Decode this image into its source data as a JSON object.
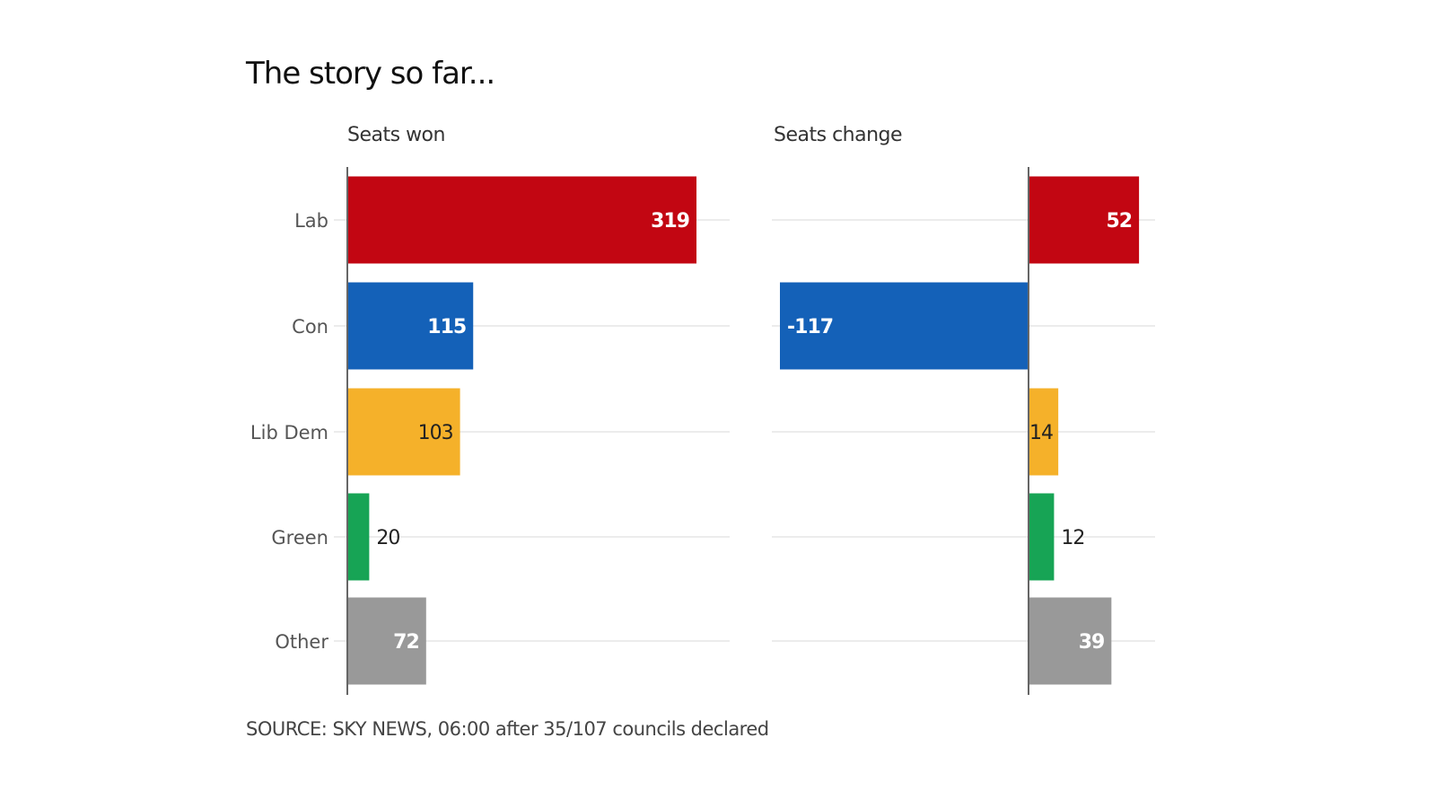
{
  "title": "The story so far...",
  "source": "SOURCE: SKY NEWS, 06:00 after 35/107 councils declared",
  "chart_data": [
    {
      "type": "bar",
      "orientation": "horizontal",
      "title": "Seats won",
      "categories": [
        "Lab",
        "Con",
        "Lib Dem",
        "Green",
        "Other"
      ],
      "values": [
        319,
        115,
        103,
        20,
        72
      ],
      "colors": [
        "#c20612",
        "#1461b8",
        "#f5b12a",
        "#17a455",
        "#999999"
      ],
      "label_colors": [
        "#ffffff",
        "#ffffff",
        "#222222",
        "#222222",
        "#ffffff"
      ],
      "xlim": [
        0,
        350
      ],
      "grid": true
    },
    {
      "type": "bar",
      "orientation": "horizontal",
      "title": "Seats change",
      "categories": [
        "Lab",
        "Con",
        "Lib Dem",
        "Green",
        "Other"
      ],
      "values": [
        52,
        -117,
        14,
        12,
        39
      ],
      "colors": [
        "#c20612",
        "#1461b8",
        "#f5b12a",
        "#17a455",
        "#999999"
      ],
      "label_colors": [
        "#ffffff",
        "#ffffff",
        "#222222",
        "#222222",
        "#ffffff"
      ],
      "xlim": [
        -120,
        60
      ],
      "grid": true
    }
  ]
}
